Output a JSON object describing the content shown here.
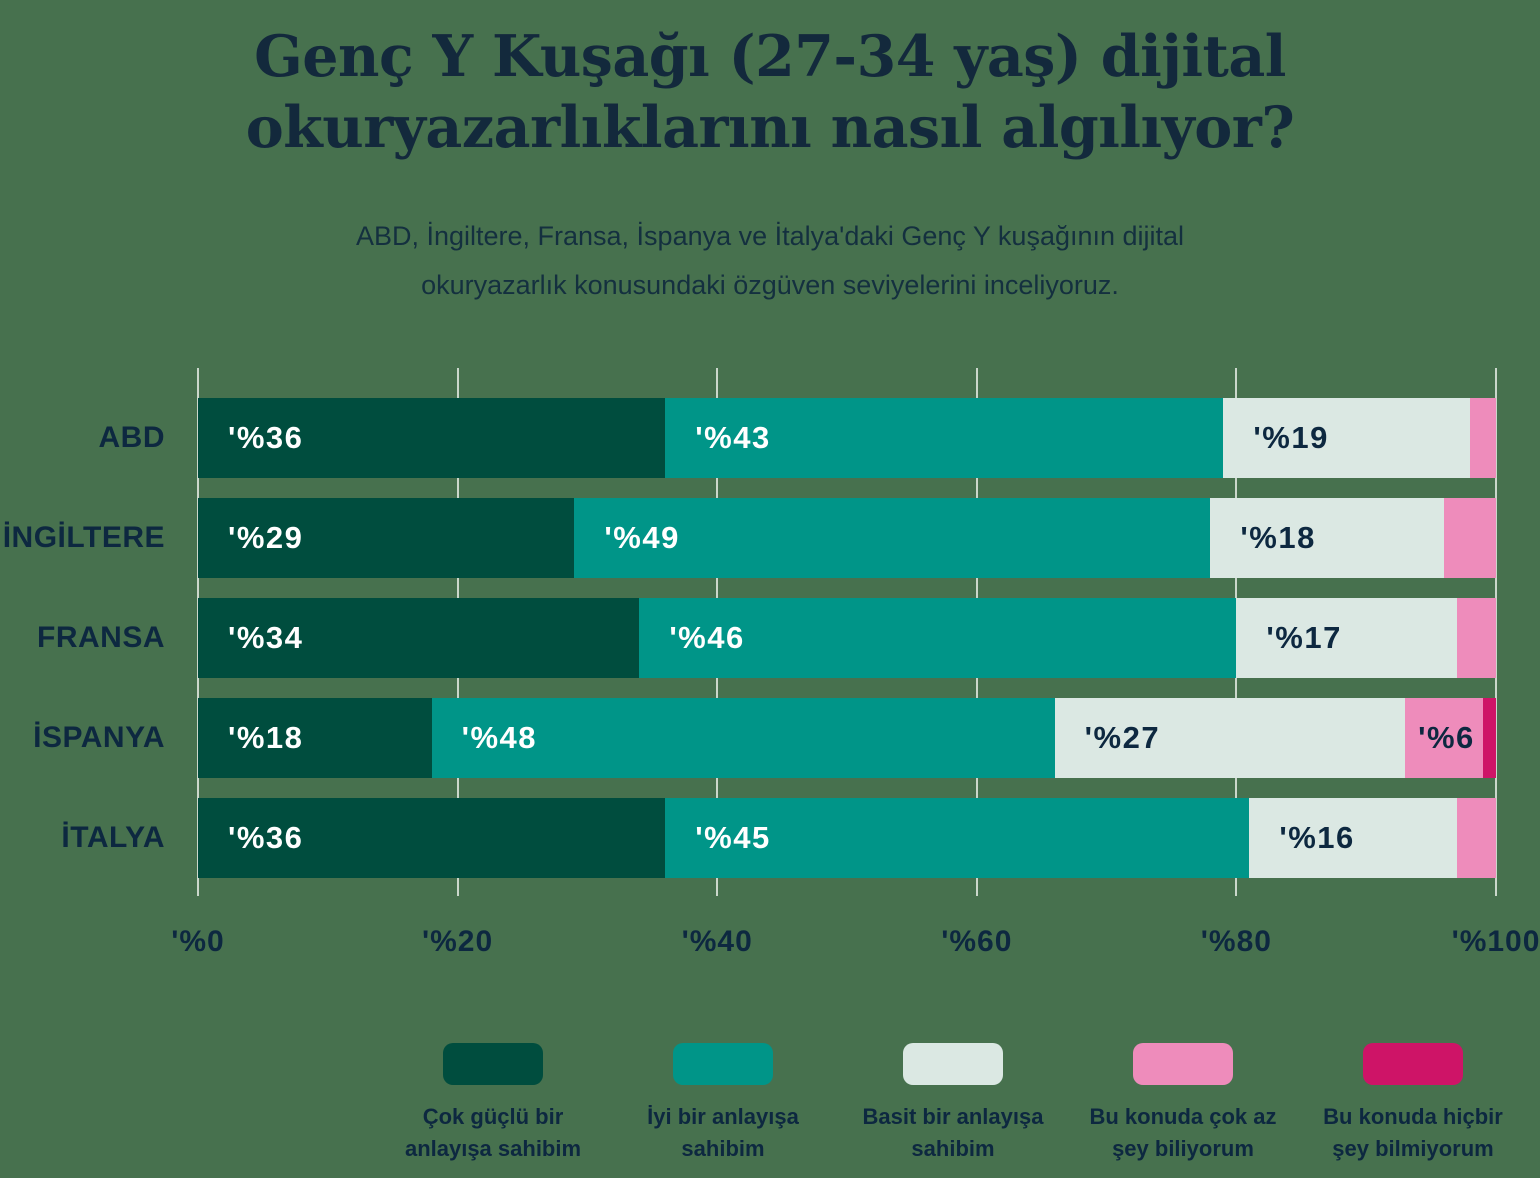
{
  "header": {
    "title_lines": [
      "Genç Y Kuşağı (27-34 yaş) dijital",
      "okuryazarlıklarını nasıl algılıyor?"
    ],
    "subtitle_lines": [
      "ABD, İngiltere, Fransa, İspanya ve İtalya'daki Genç Y kuşağının dijital",
      "okuryazarlık konusundaki özgüven seviyelerini inceliyoruz."
    ]
  },
  "colors": {
    "background": "#47714E",
    "title_text": "#13293C",
    "label_text": "#0D2840",
    "gridline": "#E3E9E2"
  },
  "chart_data": {
    "type": "bar",
    "stacked": true,
    "orientation": "horizontal",
    "grid": true,
    "legend_position": "bottom",
    "xlim": [
      0,
      100
    ],
    "x_ticks": [
      "'%0",
      "'%20",
      "'%40",
      "'%60",
      "'%80",
      "'%100"
    ],
    "value_label_prefix": "'%",
    "value_label_min": 6,
    "categories": [
      "ABD",
      "İNGİLTERE",
      "FRANSA",
      "İSPANYA",
      "İTALYA"
    ],
    "series": [
      {
        "name": "Çok güçlü bir anlayışa sahibim",
        "legend_lines": [
          "Çok güçlü bir",
          "anlayışa sahibim"
        ],
        "color": "#004D3E",
        "label_color": "#FFFFFF",
        "values": [
          36,
          29,
          34,
          18,
          36
        ]
      },
      {
        "name": "İyi bir anlayışa sahibim",
        "legend_lines": [
          "İyi bir anlayışa",
          "sahibim"
        ],
        "color": "#009588",
        "label_color": "#FFFFFF",
        "values": [
          43,
          49,
          46,
          48,
          45
        ]
      },
      {
        "name": "Basit bir anlayışa sahibim",
        "legend_lines": [
          "Basit bir anlayışa",
          "sahibim"
        ],
        "color": "#DBE8E3",
        "label_color": "#0D2840",
        "values": [
          19,
          18,
          17,
          27,
          16
        ]
      },
      {
        "name": "Bu konuda çok az şey biliyorum",
        "legend_lines": [
          "Bu konuda çok az",
          "şey biliyorum"
        ],
        "color": "#EE8CBB",
        "label_color": "#0D2840",
        "values": [
          2,
          4,
          3,
          6,
          3
        ]
      },
      {
        "name": "Bu konuda hiçbir şey bilmiyorum",
        "legend_lines": [
          "Bu konuda hiçbir",
          "şey bilmiyorum"
        ],
        "color": "#CE1467",
        "label_color": "#FFFFFF",
        "values": [
          0,
          0,
          0,
          1,
          0
        ]
      }
    ]
  }
}
